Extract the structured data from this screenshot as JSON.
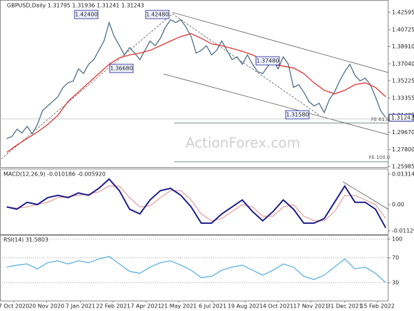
{
  "chart_data": [
    {
      "type": "line",
      "title": "GBPUSD,Daily  1.31795 1.31936 1.31241 1.31243",
      "watermark": "ActionForex.com",
      "xlim": [
        -6.5,
        372.7
      ],
      "ylim": [
        1.259,
        1.4385
      ],
      "yticks": [
        {
          "value": 1.42595,
          "label": "1.42595"
        },
        {
          "value": 1.40725,
          "label": "1.40725"
        },
        {
          "value": 1.3891,
          "label": "1.38910"
        },
        {
          "value": 1.3704,
          "label": "1.37040"
        },
        {
          "value": 1.35225,
          "label": "1.35225"
        },
        {
          "value": 1.33355,
          "label": "1.33355"
        },
        {
          "value": 1.31485,
          "label": "1.31485"
        },
        {
          "value": 1.2967,
          "label": "1.29670"
        },
        {
          "value": 1.278,
          "label": "1.27800"
        },
        {
          "value": 1.25985,
          "label": "1.25985"
        }
      ],
      "price_marker": 1.31243,
      "annotations": [
        "1.42400",
        "1.42480",
        "1.36680",
        "1.37480",
        "1.31580",
        "FE 61.8",
        "FE 100.0"
      ],
      "series": [
        {
          "color": "#4a6d84",
          "x": [
            0,
            5,
            10,
            15,
            20,
            25,
            30,
            35,
            40,
            45,
            50,
            55,
            60,
            65,
            70,
            75,
            80,
            85,
            90,
            95,
            100,
            105,
            110,
            115,
            120,
            125,
            130,
            135,
            140,
            145,
            150,
            155,
            160,
            165,
            170,
            175,
            180,
            185,
            190,
            195,
            200,
            205,
            210,
            215,
            220,
            225,
            230,
            235,
            240,
            245,
            250,
            255,
            260,
            265,
            270,
            275,
            280,
            285,
            290,
            295,
            300,
            305,
            310,
            315,
            320,
            325,
            330,
            335,
            340,
            345,
            350,
            355,
            360,
            365,
            370
          ],
          "values": [
            1.29,
            1.292,
            1.3,
            1.296,
            1.303,
            1.295,
            1.305,
            1.32,
            1.325,
            1.33,
            1.335,
            1.345,
            1.35,
            1.352,
            1.365,
            1.36,
            1.37,
            1.375,
            1.385,
            1.395,
            1.415,
            1.4,
            1.39,
            1.38,
            1.388,
            1.382,
            1.375,
            1.385,
            1.395,
            1.39,
            1.398,
            1.41,
            1.418,
            1.415,
            1.418,
            1.41,
            1.4,
            1.382,
            1.385,
            1.39,
            1.38,
            1.385,
            1.395,
            1.385,
            1.375,
            1.378,
            1.37,
            1.38,
            1.37,
            1.362,
            1.36,
            1.368,
            1.375,
            1.365,
            1.378,
            1.37,
            1.345,
            1.348,
            1.34,
            1.33,
            1.325,
            1.328,
            1.318,
            1.332,
            1.34,
            1.352,
            1.362,
            1.37,
            1.358,
            1.352,
            1.355,
            1.348,
            1.335,
            1.32,
            1.31243
          ]
        },
        {
          "color": "#e03030",
          "x": [
            0,
            10,
            20,
            30,
            40,
            50,
            60,
            70,
            80,
            90,
            100,
            110,
            120,
            130,
            140,
            150,
            160,
            170,
            180,
            190,
            200,
            210,
            220,
            230,
            240,
            250,
            260,
            270,
            280,
            290,
            300,
            310,
            320,
            330,
            340,
            350,
            360,
            370
          ],
          "values": [
            1.275,
            1.283,
            1.29,
            1.297,
            1.305,
            1.315,
            1.33,
            1.34,
            1.35,
            1.36,
            1.37,
            1.377,
            1.38,
            1.382,
            1.385,
            1.39,
            1.395,
            1.4,
            1.403,
            1.398,
            1.392,
            1.39,
            1.387,
            1.384,
            1.38,
            1.375,
            1.37,
            1.368,
            1.366,
            1.36,
            1.35,
            1.342,
            1.338,
            1.342,
            1.348,
            1.35,
            1.345,
            1.335
          ]
        }
      ]
    },
    {
      "type": "line",
      "title": "MACD(12,26,9) -0.010186 -0.005920",
      "xlim": [
        -6.5,
        372.7
      ],
      "ylim": [
        -0.0128,
        0.0152
      ],
      "yticks": [
        0.013143,
        {
          "value": 0,
          "label": "0.00"
        },
        -0.011297
      ],
      "series": [
        {
          "color": "#e8a0a0",
          "x": [
            0,
            10,
            20,
            30,
            40,
            50,
            60,
            70,
            80,
            90,
            100,
            110,
            120,
            130,
            140,
            150,
            160,
            170,
            180,
            190,
            200,
            210,
            220,
            230,
            240,
            250,
            260,
            270,
            280,
            290,
            300,
            310,
            320,
            330,
            340,
            350,
            360,
            370
          ],
          "values": [
            -0.001,
            -0.0015,
            -0.001,
            0.0,
            0.001,
            0.003,
            0.0035,
            0.004,
            0.0045,
            0.0055,
            0.008,
            0.008,
            0.003,
            -0.001,
            -0.0005,
            0.003,
            0.006,
            0.006,
            0.002,
            -0.004,
            -0.007,
            -0.006,
            -0.003,
            0.0,
            -0.001,
            -0.005,
            -0.005,
            -0.001,
            0.0,
            -0.005,
            -0.007,
            -0.007,
            -0.003,
            0.004,
            0.004,
            0.002,
            0.0,
            -0.006
          ]
        },
        {
          "color": "#1a1a8c",
          "x": [
            0,
            10,
            20,
            30,
            40,
            50,
            60,
            70,
            80,
            90,
            100,
            110,
            120,
            130,
            140,
            150,
            160,
            170,
            180,
            190,
            200,
            210,
            220,
            230,
            240,
            250,
            260,
            270,
            280,
            290,
            300,
            310,
            320,
            330,
            340,
            350,
            360,
            370
          ],
          "values": [
            -0.001,
            -0.002,
            0.001,
            0.0,
            0.003,
            0.004,
            0.003,
            0.005,
            0.004,
            0.007,
            0.011,
            0.006,
            -0.002,
            -0.004,
            0.002,
            0.006,
            0.007,
            0.004,
            -0.001,
            -0.008,
            -0.008,
            -0.004,
            -0.001,
            0.002,
            -0.003,
            -0.007,
            -0.003,
            0.002,
            -0.002,
            -0.008,
            -0.008,
            -0.006,
            0.001,
            0.008,
            0.001,
            0.001,
            -0.002,
            -0.01
          ]
        }
      ]
    },
    {
      "type": "line",
      "title": "RSI(14) 31.5803",
      "xlim": [
        -6.5,
        372.7
      ],
      "ylim": [
        1,
        105.5
      ],
      "yticks": [
        100,
        70,
        30
      ],
      "xticks": [
        {
          "value": 7,
          "label": "7 Oct 2020"
        },
        {
          "value": 39,
          "label": "20 Nov 2020"
        },
        {
          "value": 72,
          "label": "7 Jan 2021"
        },
        {
          "value": 104,
          "label": "22 Feb 2021"
        },
        {
          "value": 136,
          "label": "7 Apr 2021"
        },
        {
          "value": 168,
          "label": "21 May 2021"
        },
        {
          "value": 201,
          "label": "6 Jul 2021"
        },
        {
          "value": 233,
          "label": "19 Aug 2021"
        },
        {
          "value": 265,
          "label": "4 Oct 2021"
        },
        {
          "value": 297,
          "label": "17 Nov 2021"
        },
        {
          "value": 330,
          "label": "31 Dec 2021"
        },
        {
          "value": 362,
          "label": "15 Feb 2022"
        }
      ],
      "series": [
        {
          "color": "#5ab0e0",
          "x": [
            0,
            10,
            20,
            30,
            40,
            50,
            60,
            70,
            80,
            90,
            100,
            110,
            120,
            130,
            140,
            150,
            160,
            170,
            180,
            190,
            200,
            210,
            220,
            230,
            240,
            250,
            260,
            270,
            280,
            290,
            300,
            310,
            320,
            330,
            340,
            350,
            360,
            370
          ],
          "values": [
            55,
            58,
            60,
            52,
            62,
            65,
            60,
            65,
            62,
            68,
            72,
            60,
            48,
            45,
            55,
            62,
            65,
            58,
            50,
            38,
            40,
            50,
            55,
            58,
            50,
            42,
            50,
            60,
            55,
            40,
            35,
            42,
            55,
            68,
            52,
            55,
            45,
            30
          ]
        }
      ]
    }
  ]
}
